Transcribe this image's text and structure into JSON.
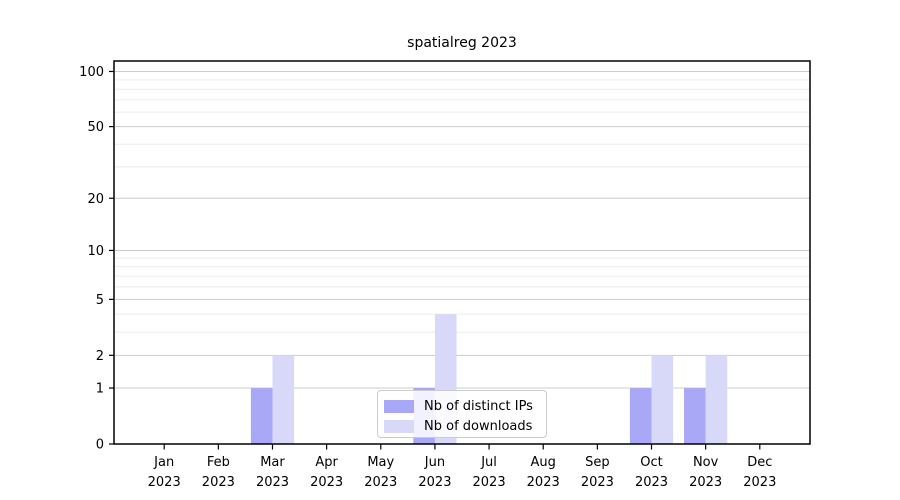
{
  "chart_data": {
    "type": "bar",
    "title": "spatialreg 2023",
    "x": {
      "months": [
        "Jan",
        "Feb",
        "Mar",
        "Apr",
        "May",
        "Jun",
        "Jul",
        "Aug",
        "Sep",
        "Oct",
        "Nov",
        "Dec"
      ],
      "year": "2023"
    },
    "series": [
      {
        "name": "Nb of distinct IPs",
        "color": "#a8a8f6",
        "values": [
          0,
          0,
          1,
          0,
          0,
          1,
          0,
          0,
          0,
          1,
          1,
          0
        ]
      },
      {
        "name": "Nb of downloads",
        "color": "#d8d8f8",
        "values": [
          0,
          0,
          2,
          0,
          0,
          4,
          0,
          0,
          0,
          2,
          2,
          0
        ]
      }
    ],
    "y_axis": {
      "scale": "log1p",
      "tick_labels": [
        "0",
        "1",
        "2",
        "5",
        "10",
        "20",
        "50",
        "100"
      ],
      "tick_values": [
        0,
        1,
        2,
        5,
        10,
        20,
        50,
        100
      ],
      "minor_gridline_values": [
        3,
        4,
        6,
        7,
        8,
        9,
        30,
        40,
        60,
        70,
        80,
        90
      ],
      "range": [
        0,
        114
      ],
      "grid": true
    },
    "legend": {
      "position": "bottom-center"
    },
    "colors": {
      "major_gridline": "#cccccc",
      "minor_gridline": "#ececec",
      "axis": "#000000",
      "text": "#000000"
    }
  }
}
